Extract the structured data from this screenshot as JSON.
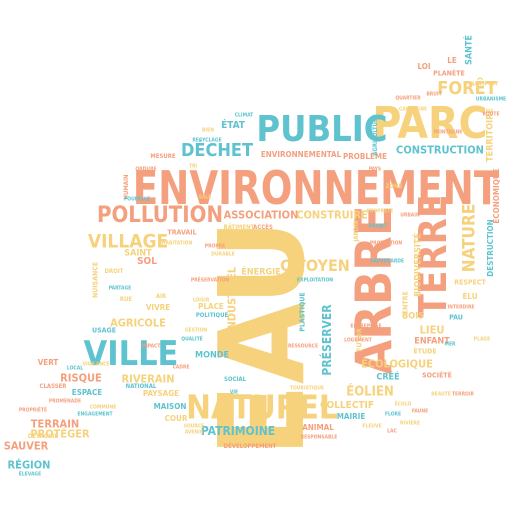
{
  "words": {
    "eau": "EAU",
    "environnement": "ENVIRONNEMENT",
    "parc": "PARC",
    "public": "PUBLIC",
    "arbre": "ARBRE",
    "terre": "TERRE",
    "naturel": "NATUREL",
    "ville": "VILLE",
    "pollution": "POLLUTION",
    "village": "VILLAGE",
    "foret": "FORÊT",
    "dechet": "DÉCHET",
    "nature": "NATURE",
    "citoyen": "CITOYEN",
    "association": "ASSOCIATION",
    "construire": "CONSTRUIRE",
    "construction": "CONSTRUCTION",
    "patrimoine": "PATRIMOINE",
    "riverain": "RIVERAIN",
    "agricole": "AGRICOLE",
    "risque": "RISQUE",
    "terrain": "TERRAIN",
    "proteger": "PROTÉGER",
    "sauver": "SAUVER",
    "region": "RÉGION",
    "ecologique": "ÉCOLOGIQUE",
    "eolien": "ÉOLIEN",
    "collectif": "COLLECTIF",
    "preserver": "PRÉSERVER",
    "industriel": "INDUSTRIEL",
    "biodiversite": "BIODIVERSITÉ",
    "sante": "SANTÉ",
    "territoire": "TERRITOIRE",
    "destruction": "DESTRUCTION",
    "economique": "ÉCONOMIQUE",
    "lieu": "LIEU",
    "enfant": "ENFANT",
    "bois": "BOIS",
    "cree": "CRÉÉ",
    "societe": "SOCIÉTÉ",
    "mairie": "MAIRIE",
    "animal": "ANIMAL",
    "monde": "MONDE",
    "place": "PLACE",
    "energie": "ÉNERGIE",
    "sol": "SOL",
    "saint": "SAINT",
    "travail": "TRAVAIL",
    "espace": "ESPACE",
    "paysage": "PAYSAGE",
    "maison": "MAISON",
    "cour": "COUR",
    "environnemental": "ENVIRONNEMENTAL",
    "probleme": "PROBLÈME",
    "etat": "ÉTAT",
    "loi": "LOI",
    "le": "LE",
    "planete": "PLANÈTE",
    "vert": "VERT",
    "vivre": "VIVRE",
    "plastique": "PLASTIQUE",
    "politique": "POLITIQUE",
    "nuisance": "NUISANCE",
    "droit": "DROIT",
    "national": "NATIONAL",
    "developpement": "DÉVELOPPEMENT",
    "futur": "FUTUR",
    "respect": "RESPECT",
    "elu": "ÉLU",
    "etude": "ÉTUDE",
    "centre": "CENTRE",
    "batiment": "BÂTIMENT",
    "acces": "ACCÈS",
    "usage": "USAGE",
    "pau": "PAU",
    "elevage": "ÉLEVAGE",
    "classer": "CLASSER",
    "detruire": "DÉTRUIRE",
    "social": "SOCIAL",
    "jardin": "JARDIN",
    "agriculture": "AGRICULTURE",
    "humain": "HUMAIN",
    "mesure": "MESURE",
    "preservation": "PRÉSERVATION",
    "rue": "RUE",
    "air": "AIR",
    "habitation": "HABITATION",
    "exploitation": "EXPLOITATION",
    "entreprise": "ENTREPRISE",
    "logement": "LOGEMENT",
    "responsable": "RESPONSABLE",
    "fleuve": "FLEUVE",
    "source": "SOURCE",
    "avenir": "AVENIR",
    "quartier": "QUARTIER",
    "bien": "BIEN",
    "climat": "CLIMAT",
    "pays": "PAYS",
    "proprete": "PROPRETÉ",
    "urbain": "URBAIN",
    "projet": "PROJET",
    "interdire": "INTERDIRE",
    "propriete": "PROPRIÉTÉ",
    "commune": "COMMUNE",
    "local": "LOCAL",
    "impact": "IMPACT",
    "qualite": "QUALITÉ",
    "gestion": "GESTION",
    "ressource": "RESSOURCE",
    "touristique": "TOURISTIQUE",
    "vie": "VIE",
    "cadre": "CADRE",
    "zone": "ZONE",
    "sauvegarde": "SAUVEGARDE",
    "protection": "PROTECTION",
    "beaute": "BEAUTÉ",
    "terroir": "TERROIR",
    "ecolo": "ÉCOLO",
    "faune": "FAUNE",
    "flore": "FLORE",
    "riviere": "RIVIÈRE",
    "lac": "LAC",
    "mer": "MER",
    "plage": "PLAGE",
    "montagne": "MONTAGNE",
    "campagne": "CAMPAGNE",
    "urbanisme": "URBANISME",
    "route": "ROUTE",
    "transport": "TRANSPORT",
    "bruit": "BRUIT",
    "recyclage": "RECYCLAGE",
    "tri": "TRI",
    "ordure": "ORDURE",
    "poubelle": "POUBELLE",
    "sale": "SALE",
    "propre": "PROPRE",
    "durable": "DURABLE",
    "partage": "PARTAGE",
    "loisir": "LOISIR",
    "promenade": "PROMENADE",
    "vigilance": "VIGILANCE",
    "engagement": "ENGAGEMENT"
  },
  "colors": {
    "orange": "#f4a07e",
    "yellow": "#f6d27c",
    "blue": "#5ec3cf"
  }
}
